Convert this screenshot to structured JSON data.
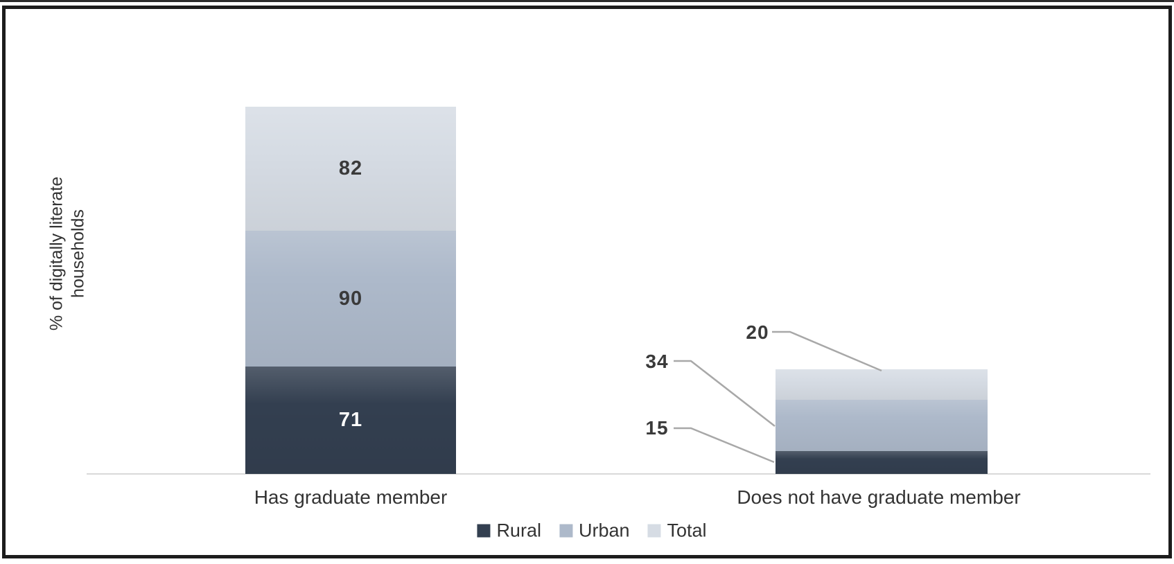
{
  "chart_data": {
    "type": "bar",
    "subtype": "stacked-column",
    "title": "",
    "categories": [
      "Has graduate member",
      "Does not have graduate member"
    ],
    "series": [
      {
        "name": "Rural",
        "color": "#333f50",
        "label_color": "#ffffff",
        "values": [
          71,
          15
        ]
      },
      {
        "name": "Urban",
        "color": "#adb9ca",
        "label_color": "#3a3a3a",
        "values": [
          90,
          34
        ]
      },
      {
        "name": "Total",
        "color": "#d6dce4",
        "label_color": "#3a3a3a",
        "values": [
          82,
          20
        ]
      }
    ],
    "data_labels": {
      "left_bar_placement": "inside-center",
      "right_bar_placement": "outside-left-with-leader-lines",
      "right_bar_values": {
        "total": 20,
        "urban": 34,
        "rural": 15
      }
    },
    "ylabel": "% of digitally literate\nhouseholds",
    "xlabel": "",
    "legend_position": "bottom",
    "gridlines": false,
    "y_axis_ticks": "none",
    "axis_line_color": "#d9d9d9",
    "leader_line_color": "#a8a8a8",
    "frame_color": "#1c1c1c",
    "background": "#ffffff"
  }
}
